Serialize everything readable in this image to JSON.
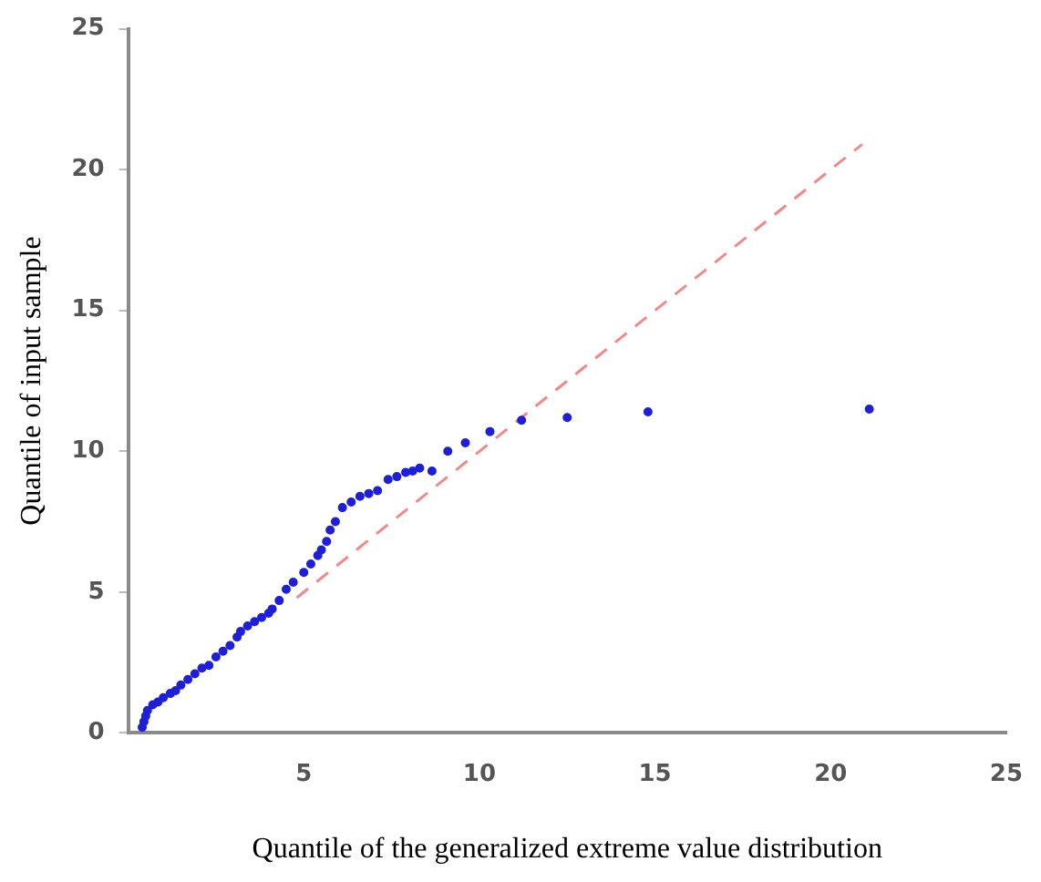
{
  "chart_data": {
    "type": "scatter",
    "xlabel": "Quantile of the generalized extreme value distribution",
    "ylabel": "Quantile of input sample",
    "xlim": [
      0,
      25
    ],
    "xticks": [
      5,
      10,
      15,
      20,
      25
    ],
    "ylim": [
      0,
      25
    ],
    "yticks": [
      0,
      5,
      10,
      15,
      20,
      25
    ],
    "grid": false,
    "legend": false,
    "marker": "circle",
    "series": [
      {
        "color": "#1f1fd6",
        "x": [
          0.4,
          0.45,
          0.5,
          0.55,
          0.7,
          0.85,
          1.0,
          1.2,
          1.35,
          1.5,
          1.7,
          1.9,
          2.1,
          2.3,
          2.5,
          2.7,
          2.9,
          3.1,
          3.2,
          3.4,
          3.6,
          3.8,
          4.0,
          4.1,
          4.3,
          4.5,
          4.7,
          5.0,
          5.2,
          5.4,
          5.5,
          5.65,
          5.75,
          5.9,
          6.1,
          6.35,
          6.6,
          6.85,
          7.1,
          7.4,
          7.65,
          7.9,
          8.1,
          8.3,
          8.65,
          9.1,
          9.6,
          10.3,
          11.2,
          12.5,
          14.8,
          21.1
        ],
        "values": [
          0.2,
          0.4,
          0.6,
          0.8,
          1.0,
          1.1,
          1.25,
          1.4,
          1.5,
          1.7,
          1.9,
          2.1,
          2.3,
          2.4,
          2.7,
          2.9,
          3.1,
          3.4,
          3.6,
          3.8,
          3.95,
          4.1,
          4.25,
          4.4,
          4.7,
          5.1,
          5.35,
          5.7,
          6.0,
          6.3,
          6.5,
          6.8,
          7.2,
          7.5,
          8.0,
          8.2,
          8.4,
          8.5,
          8.6,
          9.0,
          9.1,
          9.25,
          9.3,
          9.4,
          9.3,
          10.0,
          10.3,
          10.7,
          11.1,
          11.2,
          11.4,
          11.5
        ]
      },
      {
        "type": "line",
        "color": "#f08a8a",
        "line_style": "dashed",
        "marker": "none",
        "x": [
          4.8,
          20.9
        ],
        "values": [
          4.8,
          20.9
        ]
      }
    ]
  }
}
